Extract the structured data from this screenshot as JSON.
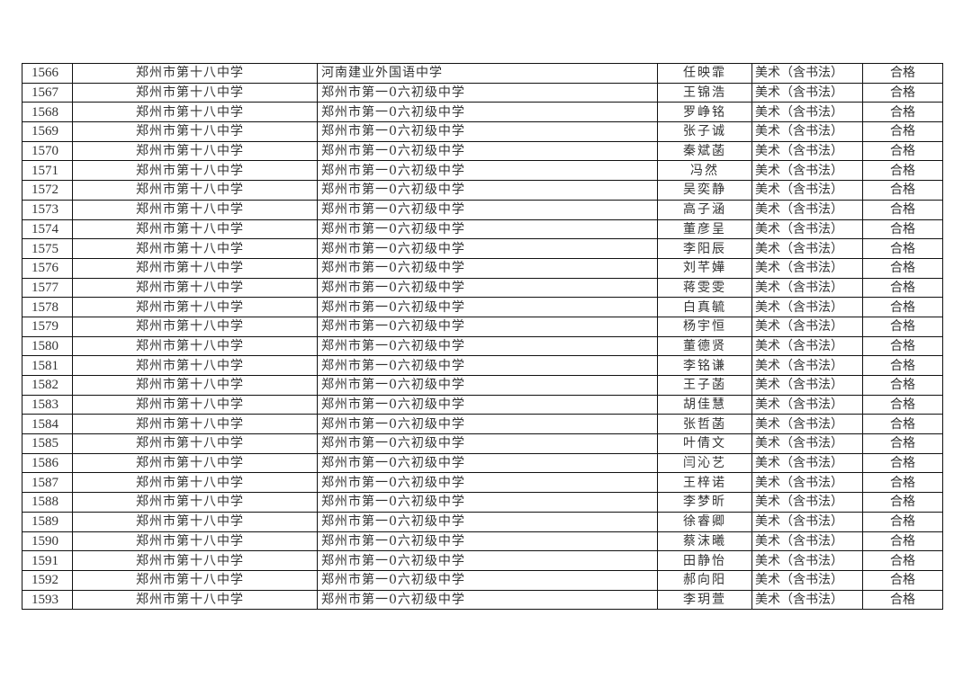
{
  "rows": [
    [
      "1566",
      "郑州市第十八中学",
      "河南建业外国语中学",
      "任映霏",
      "美术（含书法）",
      "合格"
    ],
    [
      "1567",
      "郑州市第十八中学",
      "郑州市第一0六初级中学",
      "王锦浩",
      "美术（含书法）",
      "合格"
    ],
    [
      "1568",
      "郑州市第十八中学",
      "郑州市第一0六初级中学",
      "罗峥铭",
      "美术（含书法）",
      "合格"
    ],
    [
      "1569",
      "郑州市第十八中学",
      "郑州市第一0六初级中学",
      "张子诚",
      "美术（含书法）",
      "合格"
    ],
    [
      "1570",
      "郑州市第十八中学",
      "郑州市第一0六初级中学",
      "秦斌菡",
      "美术（含书法）",
      "合格"
    ],
    [
      "1571",
      "郑州市第十八中学",
      "郑州市第一0六初级中学",
      "冯然",
      "美术（含书法）",
      "合格"
    ],
    [
      "1572",
      "郑州市第十八中学",
      "郑州市第一0六初级中学",
      "吴奕静",
      "美术（含书法）",
      "合格"
    ],
    [
      "1573",
      "郑州市第十八中学",
      "郑州市第一0六初级中学",
      "高子涵",
      "美术（含书法）",
      "合格"
    ],
    [
      "1574",
      "郑州市第十八中学",
      "郑州市第一0六初级中学",
      "董彦呈",
      "美术（含书法）",
      "合格"
    ],
    [
      "1575",
      "郑州市第十八中学",
      "郑州市第一0六初级中学",
      "李阳辰",
      "美术（含书法）",
      "合格"
    ],
    [
      "1576",
      "郑州市第十八中学",
      "郑州市第一0六初级中学",
      "刘芊嬅",
      "美术（含书法）",
      "合格"
    ],
    [
      "1577",
      "郑州市第十八中学",
      "郑州市第一0六初级中学",
      "蒋雯雯",
      "美术（含书法）",
      "合格"
    ],
    [
      "1578",
      "郑州市第十八中学",
      "郑州市第一0六初级中学",
      "白真毓",
      "美术（含书法）",
      "合格"
    ],
    [
      "1579",
      "郑州市第十八中学",
      "郑州市第一0六初级中学",
      "杨宇恒",
      "美术（含书法）",
      "合格"
    ],
    [
      "1580",
      "郑州市第十八中学",
      "郑州市第一0六初级中学",
      "董德贤",
      "美术（含书法）",
      "合格"
    ],
    [
      "1581",
      "郑州市第十八中学",
      "郑州市第一0六初级中学",
      "李铭谦",
      "美术（含书法）",
      "合格"
    ],
    [
      "1582",
      "郑州市第十八中学",
      "郑州市第一0六初级中学",
      "王子菡",
      "美术（含书法）",
      "合格"
    ],
    [
      "1583",
      "郑州市第十八中学",
      "郑州市第一0六初级中学",
      "胡佳慧",
      "美术（含书法）",
      "合格"
    ],
    [
      "1584",
      "郑州市第十八中学",
      "郑州市第一0六初级中学",
      "张哲菡",
      "美术（含书法）",
      "合格"
    ],
    [
      "1585",
      "郑州市第十八中学",
      "郑州市第一0六初级中学",
      "叶倩文",
      "美术（含书法）",
      "合格"
    ],
    [
      "1586",
      "郑州市第十八中学",
      "郑州市第一0六初级中学",
      "闫沁艺",
      "美术（含书法）",
      "合格"
    ],
    [
      "1587",
      "郑州市第十八中学",
      "郑州市第一0六初级中学",
      "王梓诺",
      "美术（含书法）",
      "合格"
    ],
    [
      "1588",
      "郑州市第十八中学",
      "郑州市第一0六初级中学",
      "李梦昕",
      "美术（含书法）",
      "合格"
    ],
    [
      "1589",
      "郑州市第十八中学",
      "郑州市第一0六初级中学",
      "徐睿卿",
      "美术（含书法）",
      "合格"
    ],
    [
      "1590",
      "郑州市第十八中学",
      "郑州市第一0六初级中学",
      "蔡沫曦",
      "美术（含书法）",
      "合格"
    ],
    [
      "1591",
      "郑州市第十八中学",
      "郑州市第一0六初级中学",
      "田静怡",
      "美术（含书法）",
      "合格"
    ],
    [
      "1592",
      "郑州市第十八中学",
      "郑州市第一0六初级中学",
      "郝向阳",
      "美术（含书法）",
      "合格"
    ],
    [
      "1593",
      "郑州市第十八中学",
      "郑州市第一0六初级中学",
      "李玥萱",
      "美术（含书法）",
      "合格"
    ]
  ]
}
